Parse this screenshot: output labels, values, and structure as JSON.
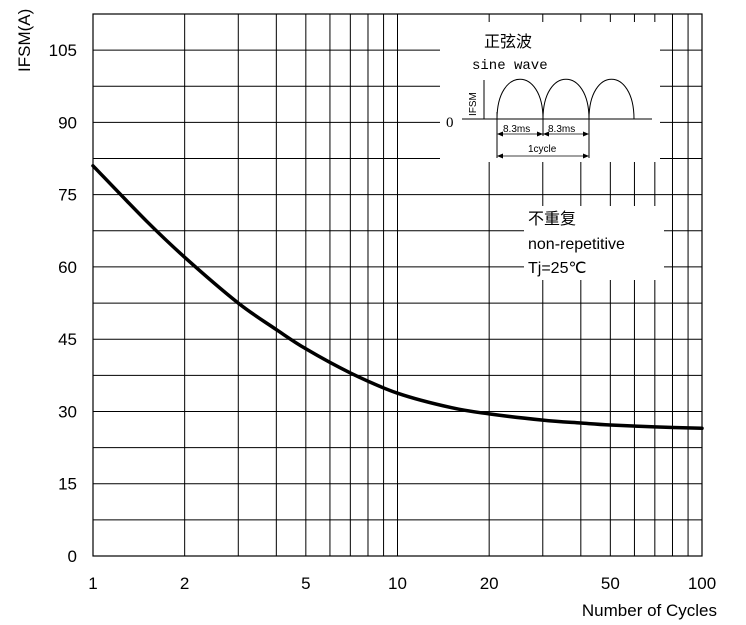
{
  "chart_data": {
    "type": "line",
    "title": "",
    "xlabel": "Number of Cycles",
    "ylabel": "IFSM(A)",
    "x_scale": "log",
    "xlim": [
      1,
      100
    ],
    "ylim": [
      0,
      112.5
    ],
    "grid": true,
    "x_ticks": [
      1,
      2,
      5,
      10,
      20,
      50,
      100
    ],
    "x_tick_labels": [
      "1",
      "2",
      "5",
      "10",
      "20",
      "50",
      "100"
    ],
    "y_ticks": [
      0,
      15,
      30,
      45,
      60,
      75,
      90,
      105
    ],
    "y_tick_labels": [
      "0",
      "15",
      "30",
      "45",
      "60",
      "75",
      "90",
      "105"
    ],
    "series": [
      {
        "x": [
          1,
          1.5,
          2,
          3,
          4,
          5,
          7,
          10,
          15,
          20,
          30,
          40,
          50,
          70,
          100
        ],
        "y": [
          81,
          69.5,
          62,
          52.5,
          47,
          43,
          38,
          33.8,
          30.8,
          29.5,
          28.2,
          27.6,
          27.2,
          26.8,
          26.5
        ]
      }
    ],
    "annotations": {
      "note_line1": "不重复",
      "note_line2": "non-repetitive",
      "note_line3": "Tj=25℃",
      "inset_title_cn": "正弦波",
      "inset_title_en": "sine wave",
      "inset_ylabel": "IFSM",
      "inset_zero": "0",
      "inset_half1": "8.3ms",
      "inset_half2": "8.3ms",
      "inset_cycle": "1cycle"
    }
  }
}
